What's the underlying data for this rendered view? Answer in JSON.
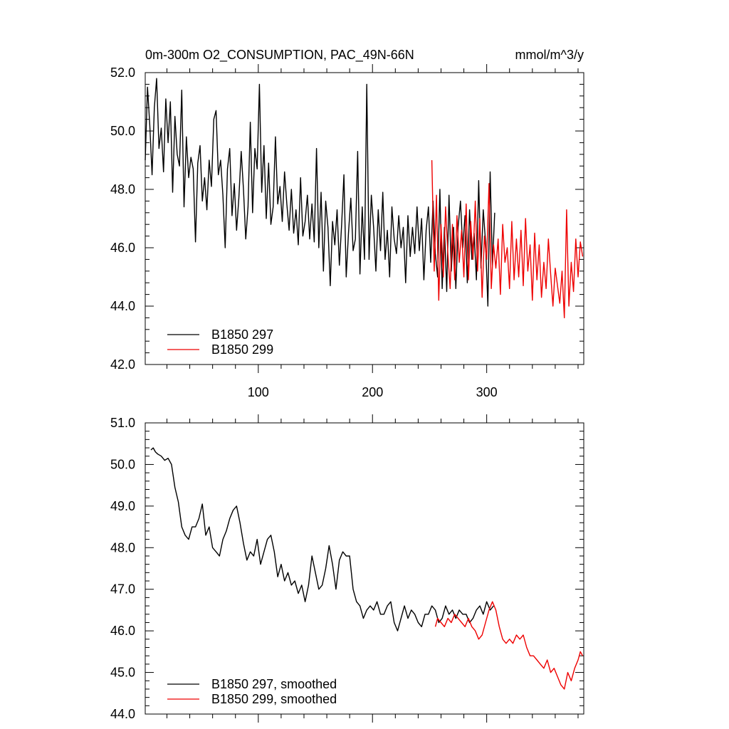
{
  "chart_data": [
    {
      "type": "line",
      "title": "0m-300m O2_CONSUMPTION, PAC_49N-66N",
      "units": "mmol/m^3/y",
      "xlim": [
        1,
        385
      ],
      "ylim": [
        42.0,
        52.0
      ],
      "x_ticks": [
        100,
        200,
        300
      ],
      "x_tick_labels": [
        "100",
        "200",
        "300"
      ],
      "y_ticks": [
        42.0,
        44.0,
        46.0,
        48.0,
        50.0,
        52.0
      ],
      "y_tick_labels": [
        "42.0",
        "44.0",
        "46.0",
        "48.0",
        "50.0",
        "52.0"
      ],
      "legend_position": "bottom-left",
      "series": [
        {
          "name": "B1850 297",
          "color": "#000000",
          "x": [
            1,
            3,
            5,
            7,
            9,
            11,
            13,
            15,
            17,
            19,
            21,
            23,
            25,
            27,
            29,
            31,
            33,
            35,
            37,
            39,
            41,
            43,
            45,
            47,
            49,
            51,
            53,
            55,
            57,
            59,
            61,
            63,
            65,
            67,
            69,
            71,
            73,
            75,
            77,
            79,
            81,
            83,
            85,
            87,
            89,
            91,
            93,
            95,
            97,
            99,
            101,
            103,
            105,
            107,
            109,
            111,
            113,
            115,
            117,
            119,
            121,
            123,
            125,
            127,
            129,
            131,
            133,
            135,
            137,
            139,
            141,
            143,
            145,
            147,
            149,
            151,
            153,
            155,
            157,
            159,
            161,
            163,
            165,
            167,
            169,
            171,
            173,
            175,
            177,
            179,
            181,
            183,
            185,
            187,
            189,
            191,
            193,
            195,
            197,
            199,
            201,
            203,
            205,
            207,
            209,
            211,
            213,
            215,
            217,
            219,
            221,
            223,
            225,
            227,
            229,
            231,
            233,
            235,
            237,
            239,
            241,
            243,
            245,
            247,
            249,
            251,
            253,
            255,
            257,
            259,
            261,
            263,
            265,
            267,
            269,
            271,
            273,
            275,
            277,
            279,
            281,
            283,
            285,
            287,
            289,
            291,
            293,
            295,
            297,
            299,
            301,
            303,
            305,
            307
          ],
          "values": [
            49.0,
            51.5,
            50.2,
            48.5,
            50.8,
            51.8,
            49.4,
            50.1,
            48.6,
            51.1,
            49.6,
            51.0,
            47.9,
            50.5,
            49.2,
            48.8,
            51.4,
            47.4,
            49.8,
            48.4,
            49.1,
            48.7,
            46.2,
            48.9,
            49.5,
            47.6,
            48.4,
            47.3,
            49.0,
            48.1,
            50.4,
            50.7,
            48.5,
            49.0,
            47.8,
            46.0,
            48.7,
            49.4,
            47.1,
            48.2,
            46.6,
            47.7,
            49.3,
            48.0,
            46.3,
            47.4,
            50.3,
            47.2,
            49.4,
            48.7,
            51.6,
            47.9,
            49.5,
            47.0,
            48.9,
            46.8,
            47.4,
            49.8,
            47.5,
            48.1,
            46.9,
            48.6,
            47.5,
            46.6,
            48.0,
            46.5,
            47.3,
            46.1,
            48.4,
            46.4,
            46.9,
            47.8,
            46.3,
            47.5,
            46.2,
            49.4,
            46.0,
            47.9,
            45.2,
            47.6,
            46.7,
            44.7,
            46.9,
            46.1,
            47.3,
            45.4,
            46.8,
            48.5,
            45.0,
            46.5,
            47.7,
            45.9,
            46.3,
            49.3,
            45.1,
            47.4,
            45.6,
            51.6,
            45.6,
            47.8,
            46.7,
            45.2,
            47.3,
            45.9,
            47.9,
            45.6,
            46.6,
            45.0,
            47.4,
            46.3,
            45.8,
            47.1,
            46.0,
            46.7,
            44.8,
            47.1,
            45.7,
            46.7,
            45.8,
            47.4,
            45.9,
            47.0,
            44.9,
            46.6,
            47.4,
            45.5,
            47.6,
            45.8,
            45.0,
            48.0,
            44.6,
            46.7,
            44.5,
            47.8,
            45.2,
            46.7,
            44.6,
            46.7,
            47.6,
            46.0,
            47.1,
            44.8,
            47.3,
            45.6,
            46.5,
            44.9,
            48.3,
            45.3,
            47.3,
            46.2,
            44.0,
            48.6,
            45.4,
            47.2
          ]
        },
        {
          "name": "B1850 299",
          "color": "#ee0000",
          "x": [
            252,
            254,
            256,
            258,
            260,
            262,
            264,
            266,
            268,
            270,
            272,
            274,
            276,
            278,
            280,
            282,
            284,
            286,
            288,
            290,
            292,
            294,
            296,
            298,
            300,
            302,
            304,
            306,
            308,
            310,
            312,
            314,
            316,
            318,
            320,
            322,
            324,
            326,
            328,
            330,
            332,
            334,
            336,
            338,
            340,
            342,
            344,
            346,
            348,
            350,
            352,
            354,
            356,
            358,
            360,
            362,
            364,
            366,
            368,
            370,
            372,
            374,
            376,
            378,
            380,
            382,
            384
          ],
          "values": [
            49.0,
            45.2,
            47.8,
            44.2,
            46.8,
            45.0,
            47.4,
            45.8,
            44.6,
            46.8,
            44.9,
            47.1,
            45.5,
            46.6,
            45.0,
            47.5,
            44.9,
            46.9,
            45.6,
            47.6,
            45.2,
            47.0,
            44.3,
            46.4,
            45.6,
            48.2,
            44.6,
            46.1,
            45.3,
            46.3,
            44.4,
            46.8,
            45.5,
            46.0,
            44.6,
            46.9,
            44.9,
            46.3,
            45.0,
            46.6,
            44.7,
            47.0,
            45.2,
            46.1,
            44.2,
            46.5,
            44.9,
            46.1,
            44.3,
            45.5,
            44.6,
            46.3,
            45.1,
            44.0,
            45.3,
            44.7,
            44.1,
            45.2,
            43.6,
            47.3,
            44.0,
            45.5,
            44.5,
            46.3,
            45.0,
            46.2,
            45.7
          ]
        }
      ]
    },
    {
      "type": "line",
      "title": "",
      "xlim": [
        1,
        385
      ],
      "ylim": [
        44.0,
        51.0
      ],
      "x_ticks": [
        100,
        200,
        300
      ],
      "y_ticks": [
        44.0,
        45.0,
        46.0,
        47.0,
        48.0,
        49.0,
        50.0,
        51.0
      ],
      "y_tick_labels": [
        "44.0",
        "45.0",
        "46.0",
        "47.0",
        "48.0",
        "49.0",
        "50.0",
        "51.0"
      ],
      "legend_position": "bottom-left",
      "series": [
        {
          "name": "B1850 297, smoothed",
          "color": "#000000",
          "x": [
            6,
            8,
            10,
            12,
            15,
            18,
            21,
            24,
            27,
            30,
            33,
            36,
            39,
            42,
            45,
            48,
            51,
            54,
            57,
            60,
            63,
            66,
            69,
            72,
            75,
            78,
            81,
            84,
            87,
            90,
            93,
            96,
            99,
            102,
            105,
            108,
            111,
            114,
            117,
            120,
            123,
            126,
            129,
            132,
            135,
            138,
            141,
            144,
            147,
            150,
            153,
            156,
            159,
            162,
            165,
            168,
            171,
            174,
            177,
            180,
            183,
            186,
            189,
            192,
            195,
            198,
            201,
            204,
            207,
            210,
            213,
            216,
            219,
            222,
            225,
            228,
            231,
            234,
            237,
            240,
            243,
            246,
            249,
            252,
            255,
            258,
            261,
            264,
            267,
            270,
            273,
            276,
            279,
            282,
            285,
            288,
            291,
            294,
            297,
            300,
            303,
            306
          ],
          "values": [
            50.35,
            50.4,
            50.3,
            50.25,
            50.2,
            50.1,
            50.15,
            50.0,
            49.45,
            49.1,
            48.5,
            48.3,
            48.2,
            48.5,
            48.5,
            48.7,
            49.05,
            48.3,
            48.5,
            48.0,
            47.9,
            47.8,
            48.2,
            48.4,
            48.7,
            48.9,
            49.0,
            48.6,
            48.1,
            47.7,
            47.9,
            47.8,
            48.2,
            47.6,
            47.9,
            48.2,
            48.3,
            47.9,
            47.3,
            47.6,
            47.2,
            47.4,
            47.1,
            47.2,
            46.9,
            47.1,
            46.7,
            47.1,
            47.8,
            47.4,
            47.0,
            47.1,
            47.5,
            48.05,
            47.6,
            47.0,
            47.7,
            47.9,
            47.8,
            47.8,
            47.0,
            46.7,
            46.6,
            46.3,
            46.5,
            46.6,
            46.5,
            46.7,
            46.4,
            46.4,
            46.6,
            46.7,
            46.2,
            46.0,
            46.3,
            46.6,
            46.3,
            46.5,
            46.4,
            46.2,
            46.1,
            46.4,
            46.4,
            46.6,
            46.5,
            46.2,
            46.3,
            46.6,
            46.4,
            46.5,
            46.3,
            46.5,
            46.4,
            46.4,
            46.2,
            46.3,
            46.5,
            46.6,
            46.4,
            46.7,
            46.5,
            46.6
          ]
        },
        {
          "name": "B1850 299, smoothed",
          "color": "#ee0000",
          "x": [
            255,
            257,
            260,
            263,
            266,
            269,
            272,
            275,
            278,
            281,
            284,
            287,
            290,
            293,
            296,
            299,
            302,
            305,
            308,
            311,
            314,
            317,
            320,
            323,
            326,
            329,
            332,
            335,
            338,
            341,
            344,
            347,
            350,
            353,
            356,
            359,
            362,
            365,
            368,
            371,
            374,
            377,
            380,
            382,
            384
          ],
          "values": [
            46.1,
            46.3,
            46.2,
            46.1,
            46.3,
            46.2,
            46.4,
            46.3,
            46.2,
            46.1,
            46.3,
            46.1,
            46.0,
            45.8,
            45.9,
            46.2,
            46.5,
            46.7,
            46.5,
            46.1,
            45.8,
            45.7,
            45.8,
            45.7,
            45.9,
            45.8,
            45.9,
            45.6,
            45.4,
            45.4,
            45.3,
            45.2,
            45.1,
            45.3,
            45.0,
            45.1,
            44.9,
            44.7,
            44.6,
            45.0,
            44.8,
            45.1,
            45.3,
            45.5,
            45.4
          ]
        }
      ]
    }
  ]
}
